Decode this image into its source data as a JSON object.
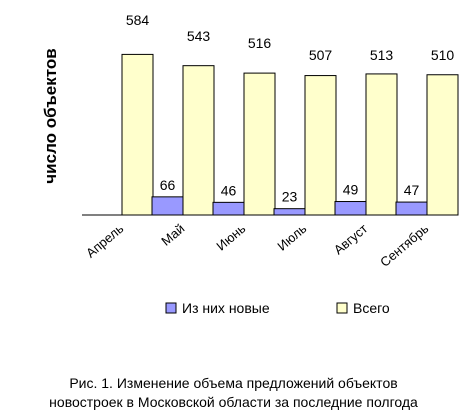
{
  "chart_data": {
    "type": "bar",
    "ylabel": "число объектов",
    "categories": [
      "Апрель",
      "Май",
      "Июнь",
      "Июль",
      "Август",
      "Сентябрь"
    ],
    "series": [
      {
        "name": "Из них новые",
        "values": [
          null,
          66,
          46,
          23,
          49,
          47
        ],
        "color": "#9999ff"
      },
      {
        "name": "Всего",
        "values": [
          584,
          543,
          516,
          507,
          513,
          510
        ],
        "color": "#ffffcc"
      }
    ],
    "data_labels": {
      "new": [
        "",
        "66",
        "46",
        "23",
        "49",
        "47"
      ],
      "total": [
        "584",
        "543",
        "516",
        "507",
        "513",
        "510"
      ]
    },
    "ylim": [
      0,
      600
    ],
    "legend_position": "bottom",
    "grid": false
  },
  "caption": {
    "line1": "Рис. 1. Изменение объема предложений объектов",
    "line2": "новостроек в Московской области за последние полгода"
  }
}
